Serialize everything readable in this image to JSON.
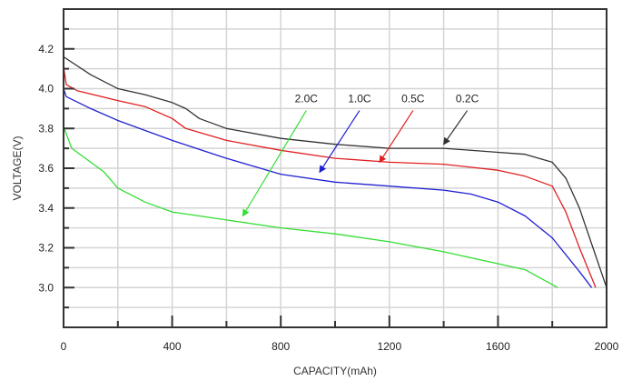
{
  "chart_data": {
    "type": "line",
    "title": "",
    "xlabel": "CAPACITY(mAh)",
    "ylabel": "VOLTAGE(V)",
    "xlim": [
      0,
      2000
    ],
    "ylim": [
      2.8,
      4.4
    ],
    "xticks": [
      "0",
      "400",
      "800",
      "1200",
      "1600",
      "2000"
    ],
    "xtick_values": [
      0,
      400,
      800,
      1200,
      1600,
      2000
    ],
    "yticks": [
      "3.0",
      "3.2",
      "3.4",
      "3.6",
      "3.8",
      "4.0",
      "4.2"
    ],
    "ytick_values": [
      3.0,
      3.2,
      3.4,
      3.6,
      3.8,
      4.0,
      4.2
    ],
    "grid": true,
    "series": [
      {
        "name": "0.2C",
        "color": "#333333",
        "x": [
          0,
          100,
          200,
          300,
          400,
          450,
          500,
          600,
          800,
          1000,
          1200,
          1400,
          1600,
          1700,
          1800,
          1850,
          1900,
          1950,
          2000
        ],
        "y": [
          4.16,
          4.07,
          4.0,
          3.97,
          3.93,
          3.9,
          3.85,
          3.8,
          3.75,
          3.72,
          3.7,
          3.7,
          3.68,
          3.67,
          3.63,
          3.55,
          3.4,
          3.2,
          3.0
        ],
        "label_pos": [
          1487,
          3.95
        ],
        "arrow": [
          [
            1487,
            3.89
          ],
          [
            1400,
            3.72
          ]
        ]
      },
      {
        "name": "0.5C",
        "color": "#e02020",
        "x": [
          0,
          10,
          50,
          200,
          300,
          400,
          450,
          600,
          800,
          1000,
          1200,
          1400,
          1600,
          1700,
          1800,
          1850,
          1900,
          1960
        ],
        "y": [
          4.11,
          4.02,
          3.99,
          3.94,
          3.91,
          3.85,
          3.8,
          3.74,
          3.69,
          3.65,
          3.63,
          3.62,
          3.59,
          3.56,
          3.51,
          3.38,
          3.2,
          3.0
        ],
        "label_pos": [
          1287,
          3.95
        ],
        "arrow": [
          [
            1287,
            3.89
          ],
          [
            1164,
            3.63
          ]
        ]
      },
      {
        "name": "1.0C",
        "color": "#2020d0",
        "x": [
          0,
          10,
          100,
          200,
          400,
          600,
          800,
          1000,
          1200,
          1400,
          1500,
          1600,
          1700,
          1800,
          1900,
          1945
        ],
        "y": [
          4.0,
          3.96,
          3.9,
          3.84,
          3.74,
          3.65,
          3.57,
          3.53,
          3.51,
          3.49,
          3.47,
          3.43,
          3.36,
          3.25,
          3.08,
          3.0
        ],
        "label_pos": [
          1090,
          3.95
        ],
        "arrow": [
          [
            1090,
            3.89
          ],
          [
            943,
            3.58
          ]
        ]
      },
      {
        "name": "2.0C",
        "color": "#33dd33",
        "x": [
          0,
          30,
          100,
          150,
          200,
          300,
          400,
          600,
          800,
          1000,
          1200,
          1400,
          1600,
          1700,
          1820
        ],
        "y": [
          3.81,
          3.7,
          3.63,
          3.58,
          3.5,
          3.43,
          3.38,
          3.34,
          3.3,
          3.27,
          3.23,
          3.18,
          3.12,
          3.09,
          3.0
        ],
        "label_pos": [
          894,
          3.95
        ],
        "arrow": [
          [
            894,
            3.89
          ],
          [
            660,
            3.36
          ]
        ]
      }
    ]
  }
}
